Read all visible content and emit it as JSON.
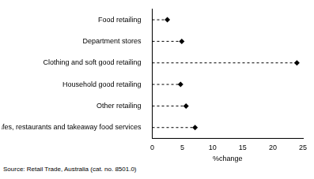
{
  "chart_data": {
    "type": "dot",
    "orientation": "horizontal",
    "categories": [
      "Food retailing",
      "Department stores",
      "Clothing and soft good retailing",
      "Household good retailing",
      "Other retailing",
      "Cafes, restaurants and takeaway food services"
    ],
    "values": [
      2.5,
      4.9,
      24,
      4.7,
      5.6,
      7.1
    ],
    "color": "#000000",
    "marker": "diamond",
    "line_style": "dashed",
    "xlabel": "%change",
    "xlim": [
      0,
      25
    ],
    "xticks": [
      0,
      5,
      10,
      15,
      20,
      25
    ],
    "grid": false,
    "source": "Source: Retail Trade, Australia (cat. no. 8501.0)"
  }
}
